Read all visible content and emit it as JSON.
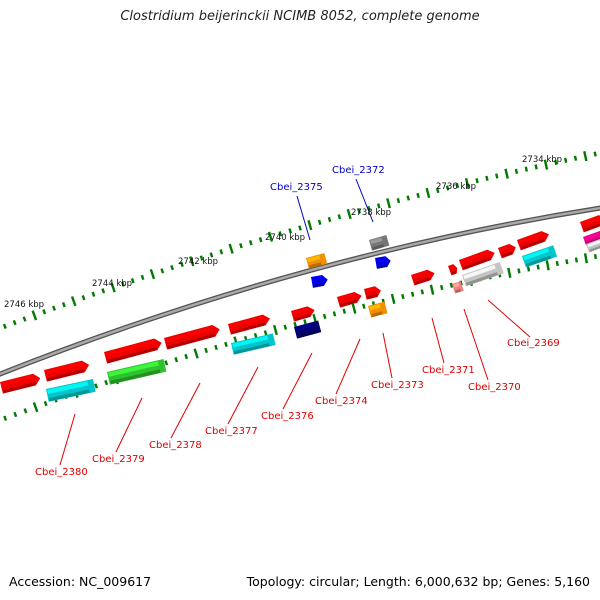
{
  "title": "Clostridium beijerinckii NCIMB 8052, complete genome",
  "footer": {
    "accession": "Accession: NC_009617",
    "summary": "Topology: circular; Length: 6,000,632 bp; Genes: 5,160"
  },
  "kbp_ticks": [
    "2734 kbp",
    "2736 kbp",
    "2738 kbp",
    "2740 kbp",
    "2742 kbp",
    "2744 kbp",
    "2746 kbp"
  ],
  "colors": {
    "red": "#ee0000",
    "cyan": "#00c6cc",
    "orange": "#f39000",
    "blue": "#0000e6",
    "navy": "#00006e",
    "green": "#2ec22e",
    "gray": "#777777",
    "lightgray": "#c4c4c4",
    "pink": "#f28080",
    "magenta": "#e6007e",
    "label_red": "#e00000",
    "label_blue": "#0000cc",
    "tick_green": "#007a00",
    "backbone": "#8a8a8a"
  },
  "gene_labels": [
    {
      "name": "Cbei_2375",
      "color": "blue"
    },
    {
      "name": "Cbei_2372",
      "color": "blue"
    },
    {
      "name": "Cbei_2369",
      "color": "red"
    },
    {
      "name": "Cbei_2371",
      "color": "red"
    },
    {
      "name": "Cbei_2370",
      "color": "red"
    },
    {
      "name": "Cbei_2373",
      "color": "red"
    },
    {
      "name": "Cbei_2374",
      "color": "red"
    },
    {
      "name": "Cbei_2376",
      "color": "red"
    },
    {
      "name": "Cbei_2377",
      "color": "red"
    },
    {
      "name": "Cbei_2378",
      "color": "red"
    },
    {
      "name": "Cbei_2379",
      "color": "red"
    },
    {
      "name": "Cbei_2380",
      "color": "red"
    }
  ]
}
